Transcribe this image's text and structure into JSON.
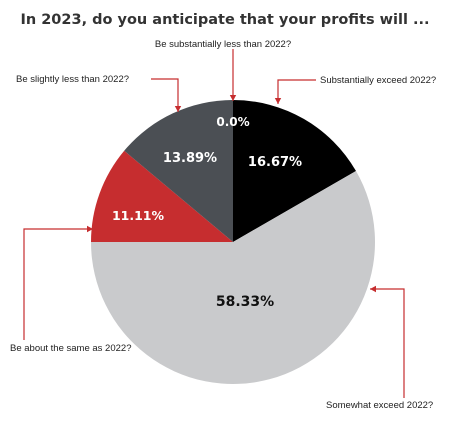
{
  "chart_data": {
    "type": "pie",
    "title": "In 2023, do you anticipate that your profits will ...",
    "slices": [
      {
        "label": "Be substantially less than 2022?",
        "value": 0.0,
        "value_label": "0.0%",
        "color": "#1a1a1a"
      },
      {
        "label": "Substantially exceed 2022?",
        "value": 16.67,
        "value_label": "16.67%",
        "color": "#000000"
      },
      {
        "label": "Somewhat exceed 2022?",
        "value": 58.33,
        "value_label": "58.33%",
        "color": "#c9cacc"
      },
      {
        "label": "Be about the same as 2022?",
        "value": 11.11,
        "value_label": "11.11%",
        "color": "#c62d2f"
      },
      {
        "label": "Be slightly less than 2022?",
        "value": 13.89,
        "value_label": "13.89%",
        "color": "#4b4f54"
      }
    ],
    "annotation_color": "#c62d2f"
  }
}
